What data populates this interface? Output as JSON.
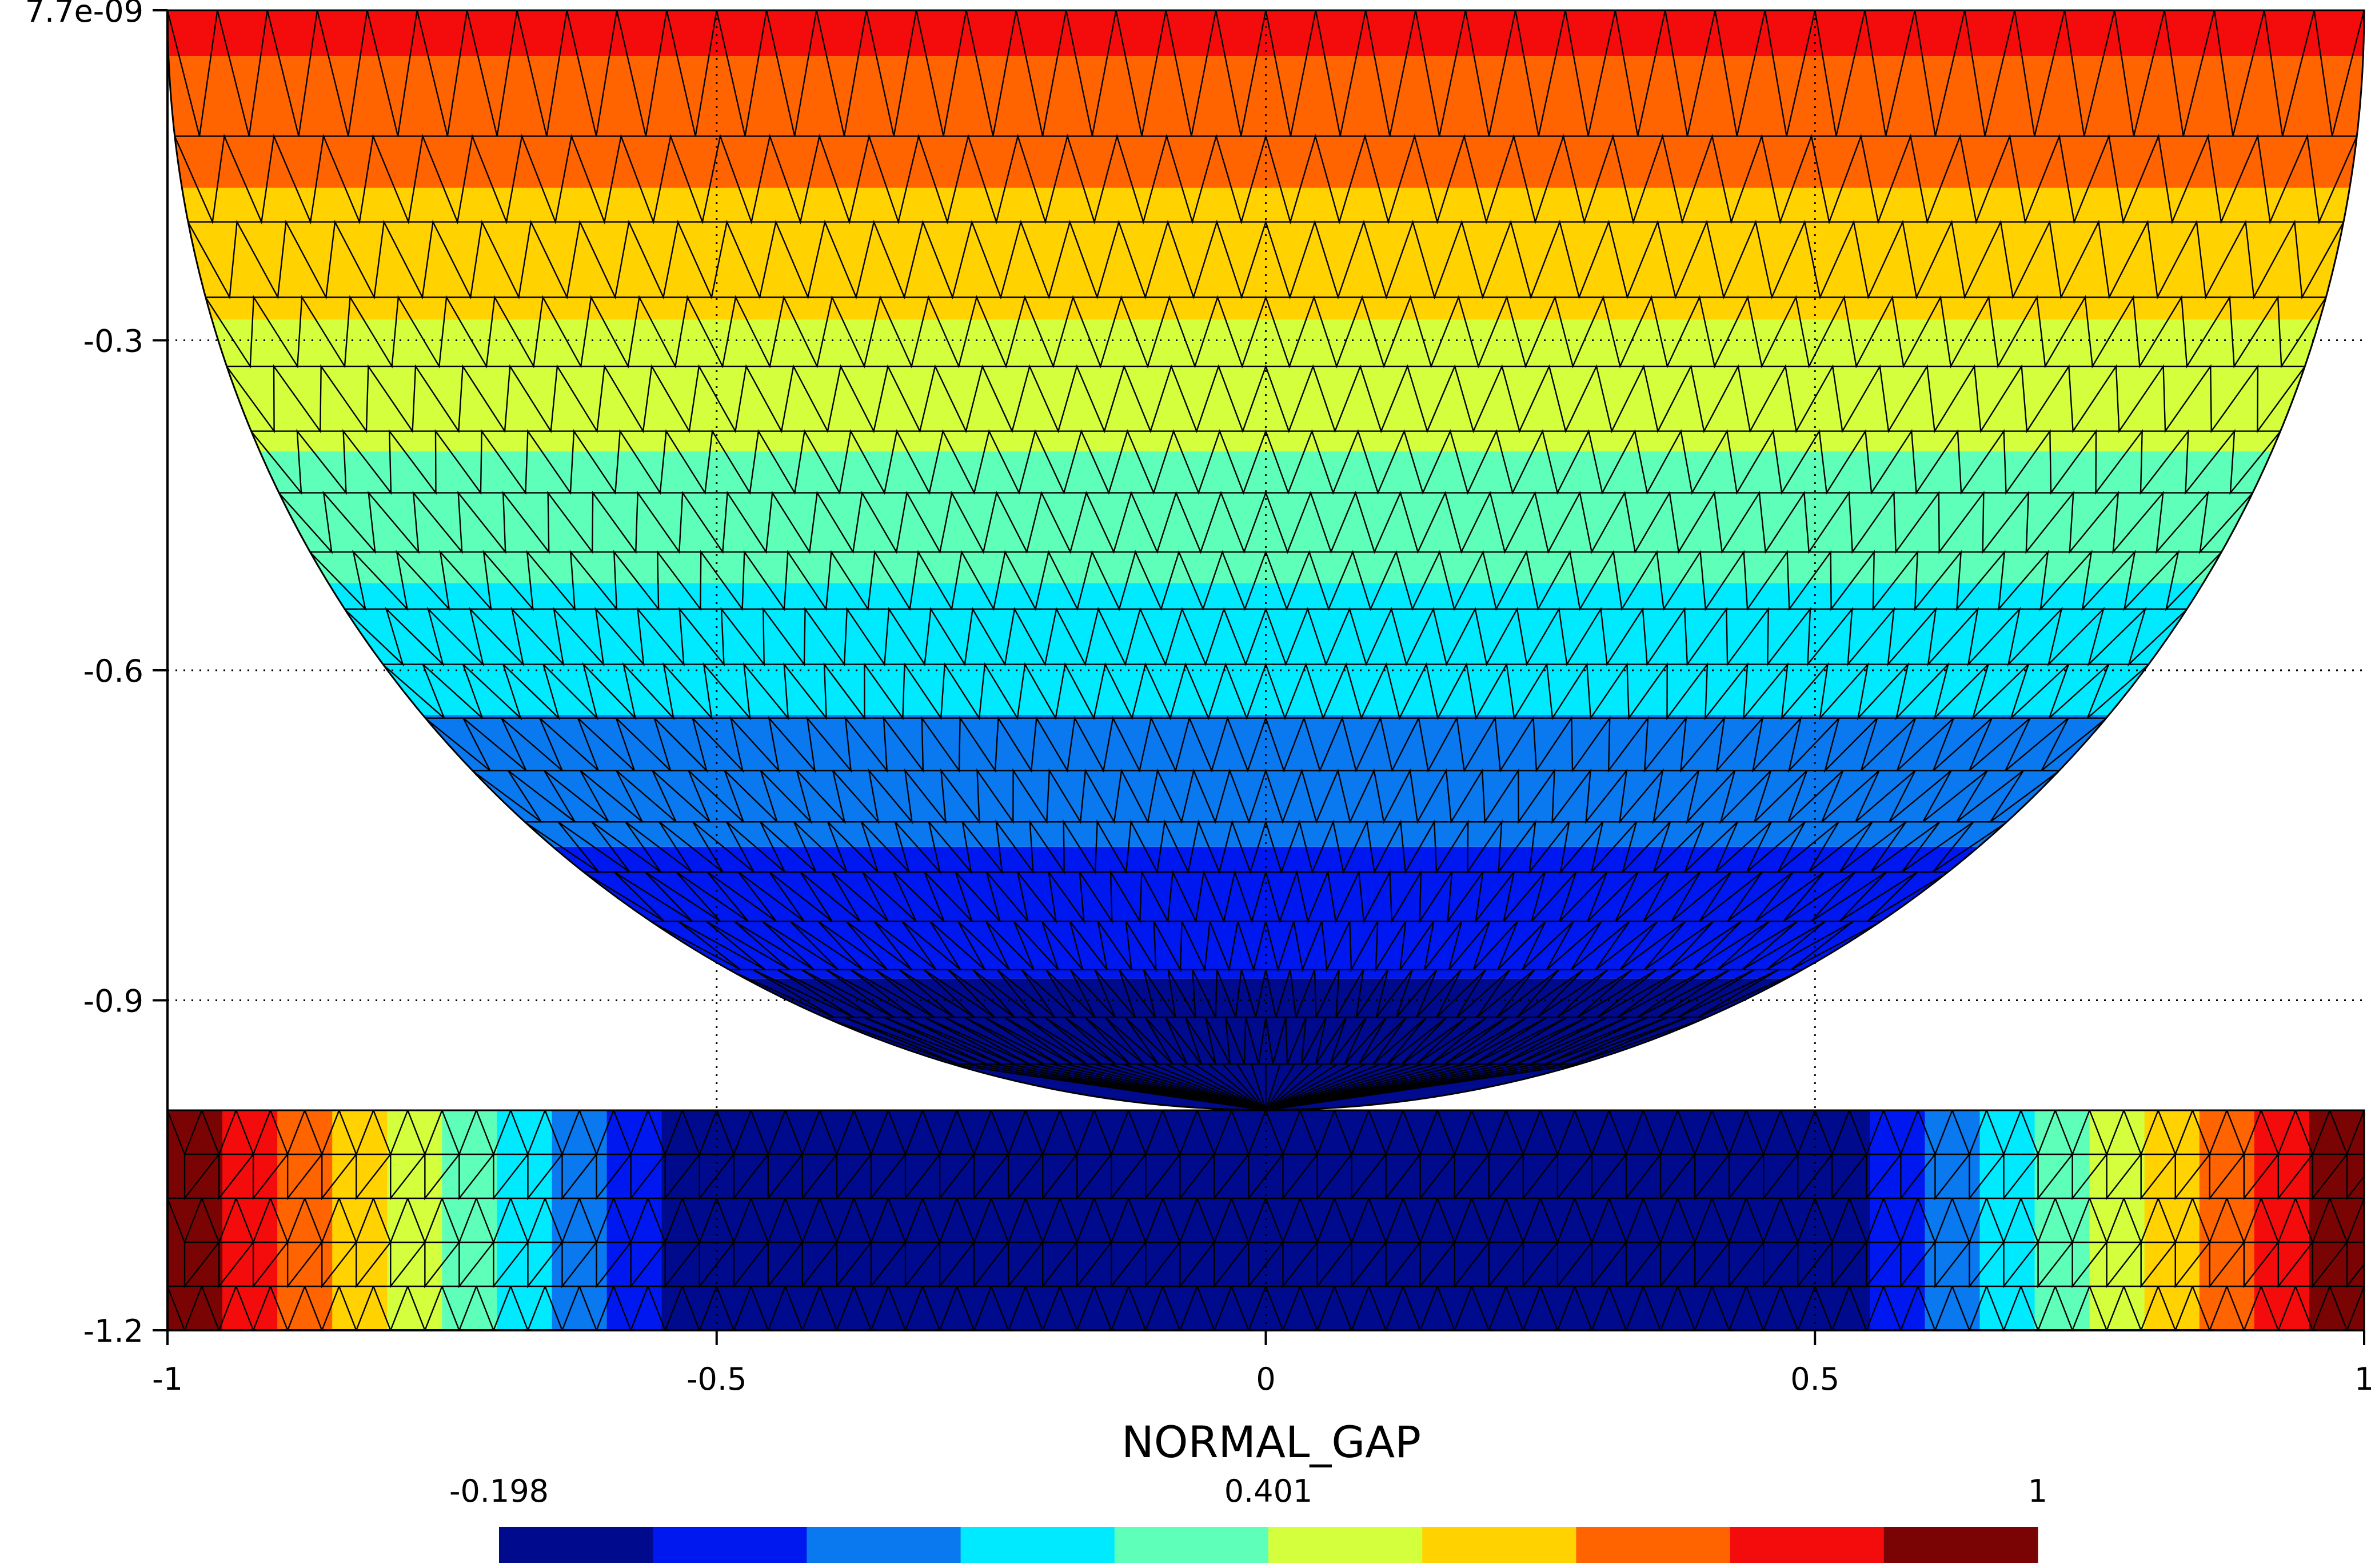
{
  "chart_data": {
    "type": "heatmap",
    "title": "",
    "xlabel": "",
    "ylabel": "",
    "xlim": [
      -1,
      1
    ],
    "ylim": [
      -1.2,
      0
    ],
    "x_ticks": [
      {
        "value": -1,
        "label": "-1"
      },
      {
        "value": -0.5,
        "label": "-0.5"
      },
      {
        "value": 0,
        "label": "0"
      },
      {
        "value": 0.5,
        "label": "0.5"
      },
      {
        "value": 1,
        "label": "1"
      }
    ],
    "y_ticks": [
      {
        "value": 0,
        "label": "7.7e-09"
      },
      {
        "value": -0.3,
        "label": "-0.3"
      },
      {
        "value": -0.6,
        "label": "-0.6"
      },
      {
        "value": -0.9,
        "label": "-0.9"
      },
      {
        "value": -1.2,
        "label": "-1.2"
      }
    ],
    "grid": true,
    "variable": "NORMAL_GAP",
    "colorbar": {
      "min": -0.198,
      "max": 1,
      "tick_labels": [
        "-0.198",
        "0.401",
        "1"
      ],
      "levels": 10,
      "colors": [
        "#000a8c",
        "#0018f0",
        "#0a78ee",
        "#00eaff",
        "#5effb8",
        "#d4ff3c",
        "#ffd200",
        "#ff6400",
        "#f40c0c",
        "#7a0404"
      ]
    },
    "regions": [
      {
        "name": "half-disk",
        "center": [
          0,
          0
        ],
        "radius": 1,
        "y_range": [
          -1,
          0
        ],
        "field": "varies with y: -0.198 near y=-1 up to 1 at y=0"
      },
      {
        "name": "slab",
        "x_range": [
          -1,
          1
        ],
        "y_range": [
          -1.2,
          -1
        ],
        "field": "minimum near x=0, rising to 1 at x=-1 and x=1"
      }
    ]
  }
}
